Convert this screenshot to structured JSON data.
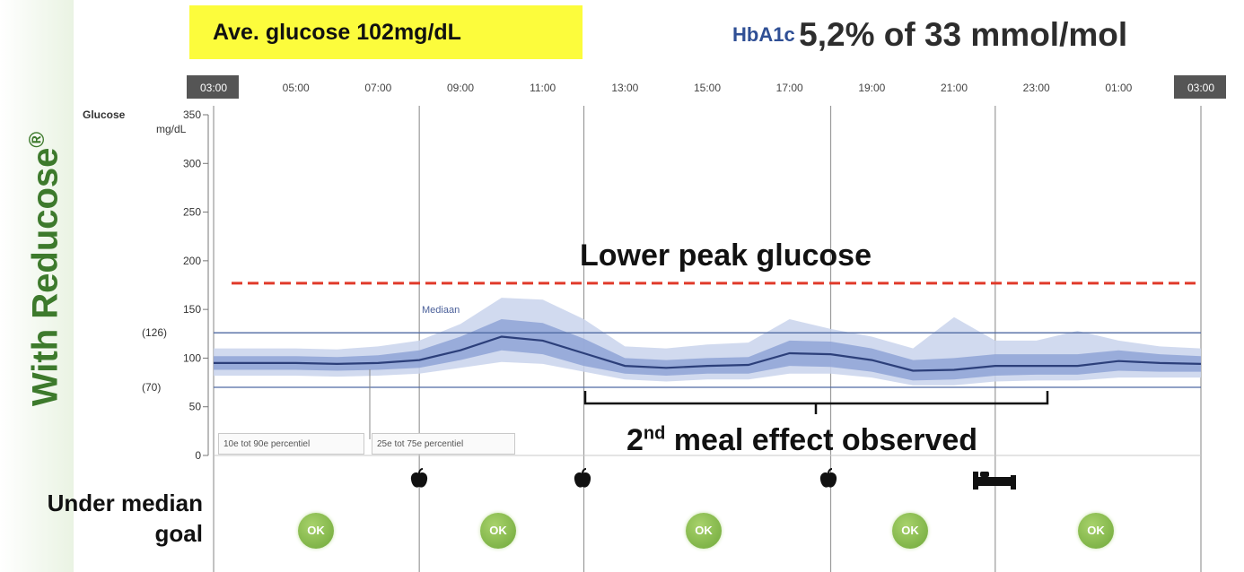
{
  "side_title": {
    "text": "With Reducose",
    "mark": "®"
  },
  "average_box": {
    "text": "Ave. glucose 102mg/dL"
  },
  "hba1c": {
    "label": "HbA1c",
    "value": "5,2% of 33 mmol/mol"
  },
  "annotations": {
    "lower_peak": "Lower peak glucose",
    "meal_effect_prefix": "2",
    "meal_effect_sup": "nd",
    "meal_effect_rest": " meal effect observed",
    "median": "Mediaan",
    "percentile_10_90": "10e tot 90e percentiel",
    "percentile_25_75": "25e tot 75e percentiel"
  },
  "under_median": {
    "line1": "Under median",
    "line2": "goal",
    "badge": "OK",
    "badge_count": 5
  },
  "colors": {
    "title_green": "#3d7a2c",
    "avg_box": "#fcfc3c",
    "median_line": "#2c3f7a",
    "band_outer": "#c9d3ec",
    "band_inner": "#8fa3d6",
    "threshold_dashed": "#e03a2a",
    "ok_badge": "#7db341",
    "hba_label": "#2f4f95"
  },
  "icons": [
    "apple-icon",
    "apple-icon",
    "apple-icon",
    "bed-icon"
  ],
  "chart_data": {
    "type": "area",
    "ylabel": "Glucose",
    "yunit": "mg/dL",
    "ylim": [
      0,
      350
    ],
    "yticks": [
      0,
      50,
      100,
      150,
      200,
      250,
      300,
      350
    ],
    "target_lines": [
      {
        "label": "(126)",
        "value": 126
      },
      {
        "label": "(70)",
        "value": 70
      }
    ],
    "threshold_line": {
      "value": 177,
      "style": "dashed",
      "color": "#e03a2a"
    },
    "x_ticks": [
      "03:00",
      "05:00",
      "07:00",
      "09:00",
      "11:00",
      "13:00",
      "15:00",
      "17:00",
      "19:00",
      "21:00",
      "23:00",
      "01:00",
      "03:00"
    ],
    "x_hours": [
      0,
      1,
      2,
      3,
      4,
      5,
      6,
      7,
      8,
      9,
      10,
      11,
      12,
      13,
      14,
      15,
      16,
      17,
      18,
      19,
      20,
      21,
      22,
      23,
      24
    ],
    "series": [
      {
        "name": "Mediaan",
        "values": [
          95,
          95,
          95,
          94,
          95,
          98,
          108,
          122,
          118,
          105,
          92,
          90,
          92,
          93,
          105,
          104,
          98,
          87,
          88,
          92,
          92,
          92,
          97,
          95,
          94
        ]
      },
      {
        "name": "25e tot 75e percentiel",
        "lower": [
          88,
          88,
          88,
          87,
          88,
          90,
          98,
          108,
          104,
          92,
          84,
          82,
          84,
          84,
          92,
          91,
          86,
          77,
          78,
          82,
          83,
          83,
          87,
          86,
          86
        ],
        "upper": [
          102,
          102,
          102,
          101,
          103,
          108,
          122,
          140,
          136,
          120,
          100,
          98,
          100,
          101,
          118,
          117,
          110,
          98,
          100,
          104,
          104,
          104,
          108,
          104,
          102
        ]
      },
      {
        "name": "10e tot 90e percentiel",
        "lower": [
          82,
          82,
          82,
          81,
          82,
          84,
          90,
          96,
          94,
          86,
          78,
          76,
          78,
          78,
          84,
          84,
          80,
          72,
          72,
          76,
          77,
          77,
          80,
          80,
          80
        ],
        "upper": [
          110,
          110,
          110,
          109,
          112,
          118,
          135,
          162,
          160,
          140,
          112,
          110,
          114,
          116,
          140,
          130,
          122,
          110,
          142,
          118,
          118,
          128,
          118,
          112,
          110
        ]
      }
    ]
  }
}
